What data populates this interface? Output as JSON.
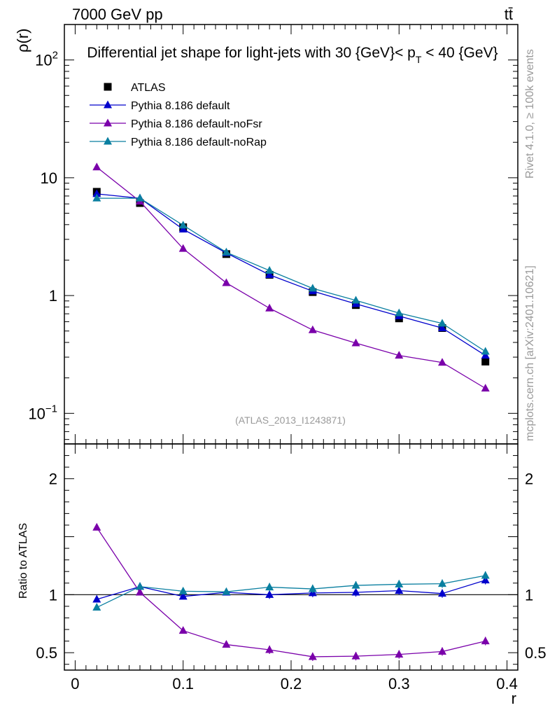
{
  "header": {
    "energy_label": "7000 GeV pp",
    "process_label": "tt̄",
    "side_label_rivet": "Rivet 4.1.0, ≥ 100k events",
    "side_label_mcplots": "mcplots.cern.ch [arXiv:2401.10621]",
    "analysis_id": "(ATLAS_2013_I1243871)"
  },
  "colors": {
    "atlas": "#000000",
    "default": "#0000cc",
    "noFsr": "#7a00aa",
    "noRap": "#0a7fa0"
  },
  "chart_data": [
    {
      "type": "line",
      "title": "Differential jet shape for light-jets with 30 {GeV}< p_T < 40 {GeV}",
      "ylabel": "ρ(r)",
      "yscale": "log",
      "ylim": [
        0.055,
        200
      ],
      "xlim": [
        -0.01,
        0.41
      ],
      "yticks": [
        {
          "value": 0.1,
          "label": "10",
          "exp": "−1"
        },
        {
          "value": 1,
          "label": "1",
          "exp": ""
        },
        {
          "value": 10,
          "label": "10",
          "exp": ""
        },
        {
          "value": 100,
          "label": "10",
          "exp": "2"
        }
      ],
      "x": [
        0.02,
        0.06,
        0.1,
        0.14,
        0.18,
        0.22,
        0.26,
        0.3,
        0.34,
        0.38
      ],
      "series": [
        {
          "name": "ATLAS",
          "marker": "square",
          "color_key": "atlas",
          "values": [
            7.6,
            6.1,
            3.8,
            2.25,
            1.5,
            1.07,
            0.83,
            0.64,
            0.53,
            0.275
          ]
        },
        {
          "name": "Pythia 8.186 default",
          "marker": "triangle",
          "color_key": "default",
          "values": [
            7.3,
            6.7,
            3.65,
            2.3,
            1.5,
            1.09,
            0.85,
            0.67,
            0.53,
            0.31
          ]
        },
        {
          "name": "Pythia 8.186 default-noFsr",
          "marker": "triangle",
          "color_key": "noFsr",
          "values": [
            12.3,
            6.3,
            2.5,
            1.28,
            0.78,
            0.51,
            0.395,
            0.31,
            0.27,
            0.163
          ]
        },
        {
          "name": "Pythia 8.186 default-noRap",
          "marker": "triangle",
          "color_key": "noRap",
          "values": [
            6.7,
            6.7,
            3.95,
            2.33,
            1.63,
            1.15,
            0.91,
            0.71,
            0.58,
            0.335
          ]
        }
      ]
    },
    {
      "type": "line",
      "ylabel": "Ratio to ATLAS",
      "xlabel": "r",
      "ylim": [
        0.35,
        2.3
      ],
      "xlim": [
        -0.01,
        0.41
      ],
      "yticks": [
        {
          "value": 0.5,
          "label": "0.5"
        },
        {
          "value": 1,
          "label": "1"
        },
        {
          "value": 2,
          "label": "2"
        }
      ],
      "xticks": [
        {
          "value": 0,
          "label": "0"
        },
        {
          "value": 0.1,
          "label": "0.1"
        },
        {
          "value": 0.2,
          "label": "0.2"
        },
        {
          "value": 0.3,
          "label": "0.3"
        },
        {
          "value": 0.4,
          "label": "0.4"
        }
      ],
      "reference_line": 1,
      "x": [
        0.02,
        0.06,
        0.1,
        0.14,
        0.18,
        0.22,
        0.26,
        0.3,
        0.34,
        0.38
      ],
      "series": [
        {
          "name": "Pythia 8.186 default",
          "color_key": "default",
          "values": [
            0.96,
            1.07,
            0.985,
            1.02,
            1.0,
            1.015,
            1.02,
            1.035,
            1.01,
            1.125
          ]
        },
        {
          "name": "Pythia 8.186 default-noFsr",
          "color_key": "noFsr",
          "values": [
            1.58,
            1.02,
            0.69,
            0.57,
            0.525,
            0.465,
            0.47,
            0.485,
            0.51,
            0.6
          ]
        },
        {
          "name": "Pythia 8.186 default-noRap",
          "color_key": "noRap",
          "values": [
            0.89,
            1.07,
            1.03,
            1.025,
            1.065,
            1.05,
            1.08,
            1.09,
            1.095,
            1.165
          ]
        }
      ]
    }
  ]
}
